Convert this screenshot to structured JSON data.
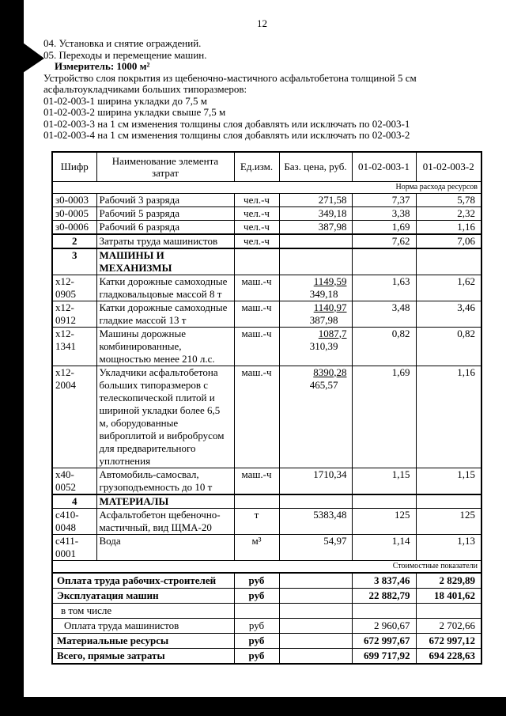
{
  "page_number": "12",
  "intro_lines": [
    "04. Установка и снятие ограждений.",
    "05. Переходы и перемещение машин."
  ],
  "measure_label": "Измеритель: 1000 м²",
  "description_lines": [
    "Устройство слоя покрытия из щебеночно-мастичного асфальтобетона толщиной 5 см",
    "асфальтоукладчиками больших типоразмеров:",
    "01-02-003-1 ширина укладки до 7,5 м",
    "01-02-003-2 ширина укладки свыше 7,5 м",
    "01-02-003-3 на 1 см изменения толщины слоя добавлять или исключать по 02-003-1",
    "01-02-003-4 на 1 см изменения толщины слоя добавлять или исключать по 02-003-2"
  ],
  "table": {
    "headers": [
      "Шифр",
      "Наименование элемента затрат",
      "Ед.изм.",
      "Баз. цена, руб.",
      "01-02-003-1",
      "01-02-003-2"
    ],
    "norma_label": "Норма расхода ресурсов",
    "cost_label": "Стоимостные показатели",
    "rows": [
      {
        "code": "з0-0003",
        "name": "Рабочий 3 разряда",
        "unit": "чел.-ч",
        "price": "271,58",
        "v1": "7,37",
        "v2": "5,78"
      },
      {
        "code": "з0-0005",
        "name": "Рабочий 5 разряда",
        "unit": "чел.-ч",
        "price": "349,18",
        "v1": "3,38",
        "v2": "2,32"
      },
      {
        "code": "з0-0006",
        "name": "Рабочий 6 разряда",
        "unit": "чел.-ч",
        "price": "387,98",
        "v1": "1,69",
        "v2": "1,16"
      },
      {
        "code": "2",
        "section": true,
        "name": "Затраты труда машинистов",
        "unit": "чел.-ч",
        "price": "",
        "v1": "7,62",
        "v2": "7,06"
      },
      {
        "code": "3",
        "section": true,
        "name_bold": true,
        "name": "МАШИНЫ И\nМЕХАНИЗМЫ",
        "unit": "",
        "price": "",
        "v1": "",
        "v2": ""
      },
      {
        "code": "х12-0905",
        "name": "Катки дорожные самоходные гладковальцовые массой 8 т",
        "unit": "маш.-ч",
        "price_main": "1149,59",
        "price_sub": "349,18",
        "v1": "1,63",
        "v2": "1,62"
      },
      {
        "code": "х12-0912",
        "name": "Катки дорожные самоходные гладкие массой 13 т",
        "unit": "маш.-ч",
        "price_main": "1140,97",
        "price_sub": "387,98",
        "v1": "3,48",
        "v2": "3,46"
      },
      {
        "code": "х12-1341",
        "name": "Машины дорожные комбинированные, мощностью менее 210 л.с.",
        "unit": "маш.-ч",
        "price_main": "1087,7",
        "price_sub": "310,39",
        "v1": "0,82",
        "v2": "0,82"
      },
      {
        "code": "х12-2004",
        "name": "Укладчики асфальтобетона больших типоразмеров с телескопической плитой и шириной укладки более 6,5 м, оборудованные виброплитой и вибробрусом для предварительного уплотнения",
        "unit": "маш.-ч",
        "price_main": "8390,28",
        "price_sub": "465,57",
        "v1": "1,69",
        "v2": "1,16"
      },
      {
        "code": "х40-0052",
        "name": "Автомобиль-самосвал, грузоподъемность до 10 т",
        "unit": "маш.-ч",
        "price": "1710,34",
        "v1": "1,15",
        "v2": "1,15"
      },
      {
        "code": "4",
        "section": true,
        "name_bold": true,
        "name": "МАТЕРИАЛЫ",
        "unit": "",
        "price": "",
        "v1": "",
        "v2": ""
      },
      {
        "code": "с410-0048",
        "name": "Асфальтобетон щебеночно-мастичный, вид ЩМА-20",
        "unit": "т",
        "price": "5383,48",
        "v1": "125",
        "v2": "125"
      },
      {
        "code": "с411-0001",
        "name": "Вода",
        "unit": "м³",
        "price": "54,97",
        "v1": "1,14",
        "v2": "1,13"
      }
    ],
    "summary_rows": [
      {
        "name": "Оплата труда рабочих-строителей",
        "unit": "руб",
        "v1": "3 837,46",
        "v2": "2 829,89",
        "bold": true,
        "first": true
      },
      {
        "name": "Эксплуатация машин",
        "unit": "руб",
        "v1": "22 882,79",
        "v2": "18 401,62",
        "bold": true
      },
      {
        "name": "в том числе",
        "unit": "",
        "v1": "",
        "v2": "",
        "indent": 1
      },
      {
        "name": "Оплата труда машинистов",
        "unit": "руб",
        "v1": "2 960,67",
        "v2": "2 702,66",
        "indent": 2
      },
      {
        "name": "Материальные ресурсы",
        "unit": "руб",
        "v1": "672 997,67",
        "v2": "672 997,12",
        "bold": true
      },
      {
        "name": "Всего, прямые затраты",
        "unit": "руб",
        "v1": "699 717,92",
        "v2": "694 228,63",
        "bold": true
      }
    ]
  }
}
